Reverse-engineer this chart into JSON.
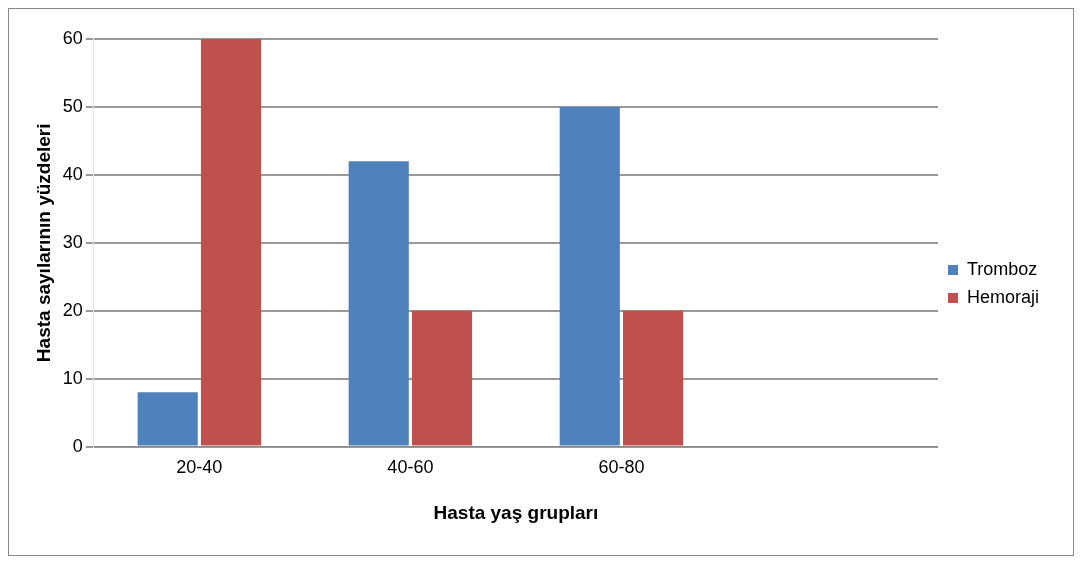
{
  "chart_data": {
    "type": "bar",
    "xlabel": "Hasta yaş grupları",
    "ylabel": "Hasta sayılarının yüzdeleri",
    "categories": [
      "20-40",
      "40-60",
      "60-80",
      null
    ],
    "series": [
      {
        "name": "Tromboz",
        "color": "#4f81bd",
        "values": [
          8,
          42,
          50,
          null
        ]
      },
      {
        "name": "Hemoraji",
        "color": "#c0504d",
        "values": [
          60,
          20,
          20,
          null
        ]
      }
    ],
    "ylim": [
      0,
      60
    ],
    "yticks": [
      0,
      10,
      20,
      30,
      40,
      50,
      60
    ],
    "grid": "y",
    "legend": "right"
  }
}
